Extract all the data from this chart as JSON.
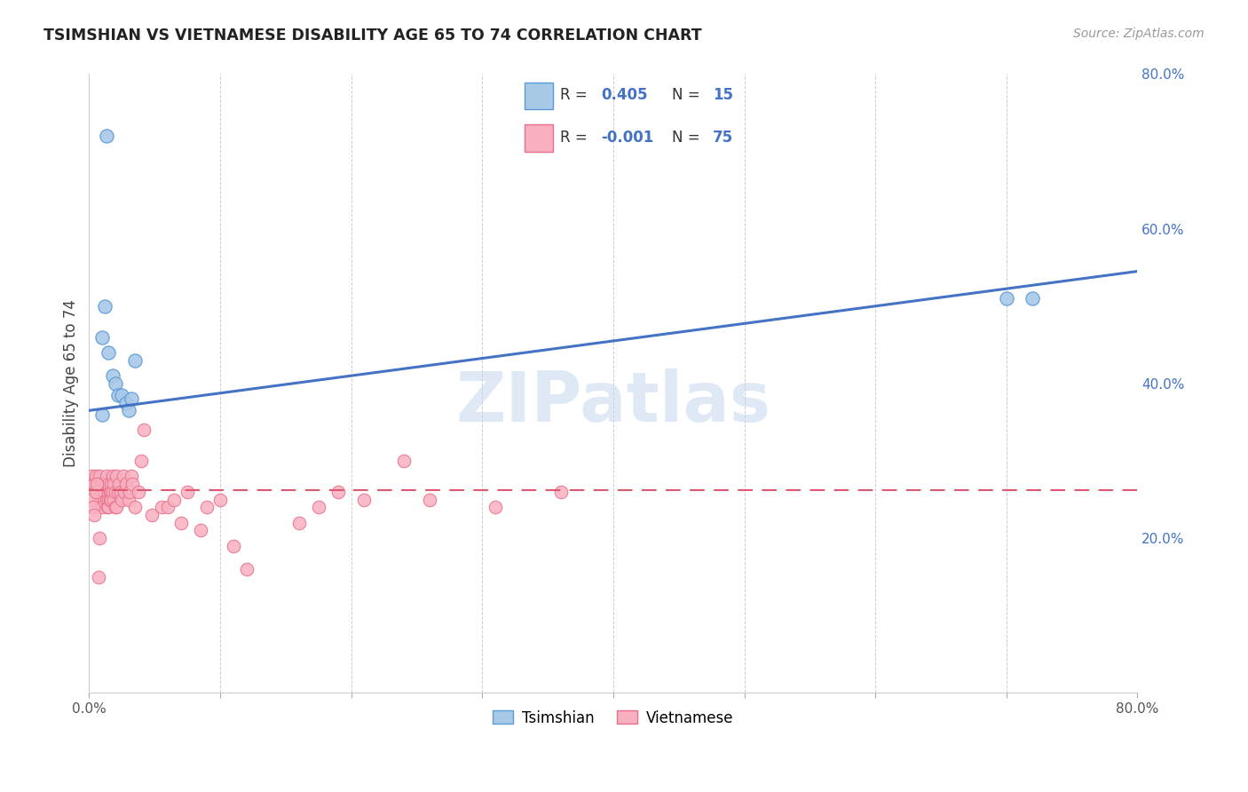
{
  "title": "TSIMSHIAN VS VIETNAMESE DISABILITY AGE 65 TO 74 CORRELATION CHART",
  "source": "Source: ZipAtlas.com",
  "ylabel": "Disability Age 65 to 74",
  "xlim": [
    0.0,
    0.8
  ],
  "ylim": [
    0.0,
    0.8
  ],
  "xtick_vals": [
    0.0,
    0.1,
    0.2,
    0.3,
    0.4,
    0.5,
    0.6,
    0.7,
    0.8
  ],
  "xtick_labels": [
    "0.0%",
    "",
    "",
    "",
    "",
    "",
    "",
    "",
    "80.0%"
  ],
  "ytick_vals": [
    0.2,
    0.4,
    0.6,
    0.8
  ],
  "ytick_labels": [
    "20.0%",
    "40.0%",
    "60.0%",
    "80.0%"
  ],
  "tsimshian_color": "#a8c8e8",
  "vietnamese_color": "#f8b0c0",
  "tsimshian_edge": "#5b9bd5",
  "vietnamese_edge": "#e8708a",
  "trendline_tsimshian_color": "#4472c4",
  "trendline_vietnamese_color": "#e05870",
  "R_tsimshian": "0.405",
  "N_tsimshian": "15",
  "R_vietnamese": "-0.001",
  "N_vietnamese": "75",
  "legend_label_tsimshian": "Tsimshian",
  "legend_label_vietnamese": "Vietnamese",
  "watermark": "ZIPatlas",
  "background_color": "#ffffff",
  "grid_color": "#cccccc",
  "tsimshian_x": [
    0.013,
    0.012,
    0.01,
    0.015,
    0.018,
    0.02,
    0.022,
    0.025,
    0.028,
    0.03,
    0.032,
    0.035,
    0.7,
    0.72,
    0.01
  ],
  "tsimshian_y": [
    0.72,
    0.5,
    0.46,
    0.44,
    0.41,
    0.4,
    0.385,
    0.385,
    0.375,
    0.365,
    0.38,
    0.43,
    0.51,
    0.51,
    0.36
  ],
  "vietnamese_x": [
    0.002,
    0.003,
    0.004,
    0.005,
    0.006,
    0.007,
    0.008,
    0.009,
    0.01,
    0.01,
    0.01,
    0.011,
    0.012,
    0.012,
    0.013,
    0.013,
    0.014,
    0.014,
    0.015,
    0.015,
    0.015,
    0.016,
    0.016,
    0.017,
    0.017,
    0.017,
    0.018,
    0.018,
    0.019,
    0.019,
    0.02,
    0.02,
    0.021,
    0.021,
    0.022,
    0.023,
    0.024,
    0.025,
    0.026,
    0.027,
    0.028,
    0.03,
    0.031,
    0.032,
    0.033,
    0.035,
    0.038,
    0.04,
    0.042,
    0.048,
    0.055,
    0.06,
    0.065,
    0.07,
    0.075,
    0.085,
    0.09,
    0.1,
    0.11,
    0.12,
    0.16,
    0.175,
    0.19,
    0.21,
    0.24,
    0.26,
    0.31,
    0.36,
    0.002,
    0.003,
    0.004,
    0.005,
    0.006,
    0.007,
    0.008
  ],
  "vietnamese_y": [
    0.28,
    0.27,
    0.27,
    0.28,
    0.26,
    0.25,
    0.28,
    0.26,
    0.25,
    0.27,
    0.24,
    0.26,
    0.26,
    0.27,
    0.25,
    0.28,
    0.24,
    0.26,
    0.25,
    0.27,
    0.24,
    0.26,
    0.25,
    0.27,
    0.26,
    0.25,
    0.28,
    0.26,
    0.25,
    0.27,
    0.24,
    0.26,
    0.24,
    0.28,
    0.26,
    0.27,
    0.26,
    0.25,
    0.28,
    0.26,
    0.27,
    0.25,
    0.26,
    0.28,
    0.27,
    0.24,
    0.26,
    0.3,
    0.34,
    0.23,
    0.24,
    0.24,
    0.25,
    0.22,
    0.26,
    0.21,
    0.24,
    0.25,
    0.19,
    0.16,
    0.22,
    0.24,
    0.26,
    0.25,
    0.3,
    0.25,
    0.24,
    0.26,
    0.25,
    0.24,
    0.23,
    0.26,
    0.27,
    0.15,
    0.2
  ],
  "tsim_trend_x0": 0.0,
  "tsim_trend_y0": 0.365,
  "tsim_trend_x1": 0.8,
  "tsim_trend_y1": 0.545,
  "viet_trend_x0": 0.0,
  "viet_trend_y0": 0.262,
  "viet_trend_x1": 0.8,
  "viet_trend_y1": 0.262
}
